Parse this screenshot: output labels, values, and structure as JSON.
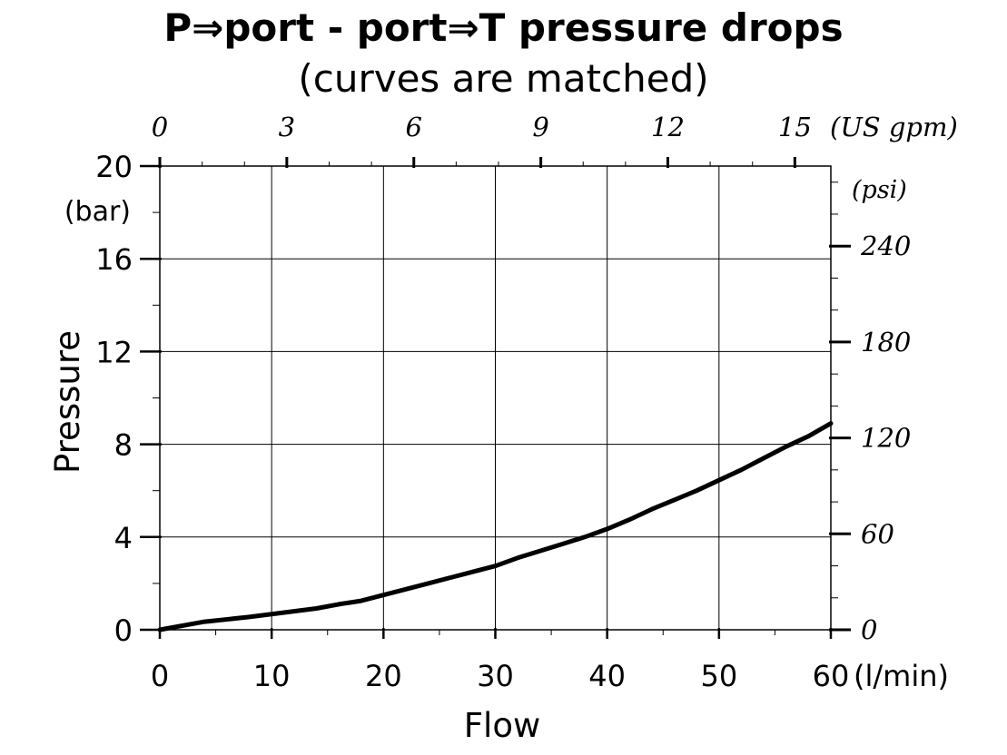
{
  "chart_data": {
    "type": "line",
    "title": "P⇒port - port⇒T pressure drops",
    "subtitle": "(curves are matched)",
    "xlabel": "Flow",
    "x_unit": "(l/min)",
    "ylabel": "Pressure",
    "y_unit": "(bar)",
    "xlim": [
      0,
      60
    ],
    "ylim": [
      0,
      20
    ],
    "x_ticks": [
      "0",
      "10",
      "20",
      "30",
      "40",
      "50",
      "60"
    ],
    "y_ticks": [
      "0",
      "4",
      "8",
      "12",
      "16",
      "20"
    ],
    "secondary_x_unit": "(US gpm)",
    "secondary_x_ticks": [
      "0",
      "3",
      "6",
      "9",
      "12",
      "15"
    ],
    "secondary_y_unit": "(psi)",
    "secondary_y_ticks": [
      "0",
      "60",
      "120",
      "180",
      "240"
    ],
    "grid": true,
    "series": [
      {
        "x": [
          0,
          4,
          8,
          12,
          14,
          16,
          18,
          20,
          22,
          24,
          26,
          28,
          30,
          32,
          34,
          36,
          38,
          40,
          42,
          44,
          46,
          48,
          50,
          52,
          54,
          56,
          58,
          60
        ],
        "y": [
          0,
          0.35,
          0.55,
          0.8,
          0.92,
          1.1,
          1.25,
          1.5,
          1.75,
          2.0,
          2.25,
          2.5,
          2.75,
          3.1,
          3.4,
          3.7,
          4.0,
          4.35,
          4.75,
          5.2,
          5.6,
          6.0,
          6.45,
          6.9,
          7.4,
          7.9,
          8.35,
          8.9
        ]
      }
    ],
    "colors": {
      "line": "#000000",
      "grid": "#000000",
      "background": "#ffffff"
    }
  }
}
